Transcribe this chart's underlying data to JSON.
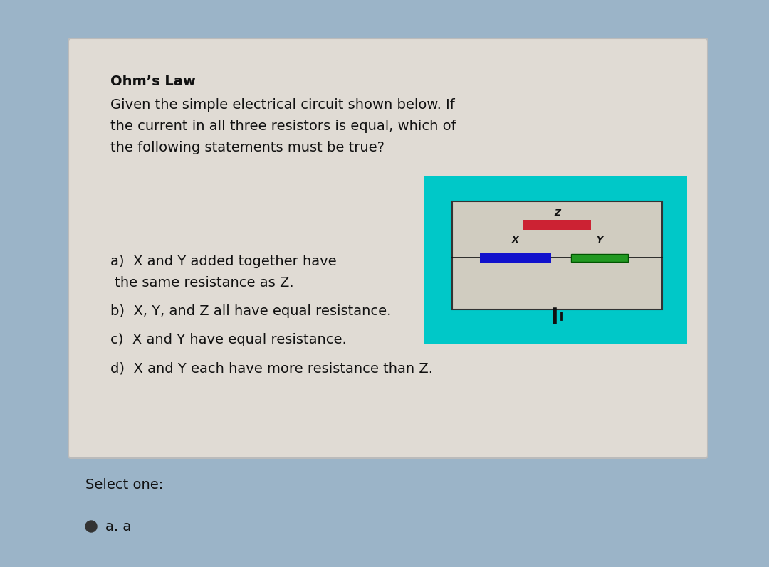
{
  "title": "Ohm’s Law",
  "question_line1": "Given the simple electrical circuit shown below. If",
  "question_line2": "the current in all three resistors is equal, which of",
  "question_line3": "the following statements must be true?",
  "option_a1": "a)  X and Y added together have",
  "option_a2": " the same resistance as Z.",
  "option_b": "b)  X, Y, and Z all have equal resistance.",
  "option_c": "c)  X and Y have equal resistance.",
  "option_d": "d)  X and Y each have more resistance than Z.",
  "select_text": "Select one:",
  "select_answer": "a. a",
  "bg_outer": "#9bb4c8",
  "bg_card": "#e0dbd4",
  "bg_circuit": "#00c8c8",
  "bg_inner_rect": "#ccc8c0",
  "wire_color": "#111111",
  "resistor_z_color": "#cc2233",
  "resistor_x_color": "#1111cc",
  "resistor_y_color": "#229922",
  "title_fontsize": 14,
  "text_fontsize": 14,
  "option_fontsize": 14,
  "select_fontsize": 14
}
